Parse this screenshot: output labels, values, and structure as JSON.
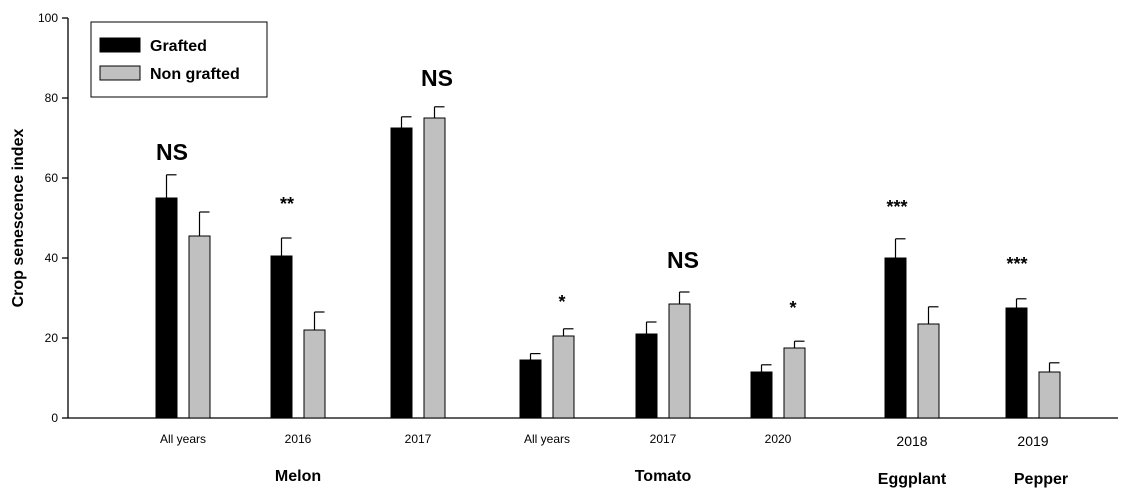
{
  "chart_data": {
    "type": "bar",
    "title": "",
    "xlabel": "",
    "ylabel": "Crop senescence index",
    "ylim": [
      0,
      100
    ],
    "yticks": [
      0,
      20,
      40,
      60,
      80,
      100
    ],
    "grid": false,
    "legend_position": "top-left",
    "groups": [
      "Melon",
      "Tomato",
      "Eggplant",
      "Pepper"
    ],
    "categories": [
      {
        "label": "All years",
        "group": "Melon"
      },
      {
        "label": "2016",
        "group": "Melon"
      },
      {
        "label": "2017",
        "group": "Melon"
      },
      {
        "label": "All years",
        "group": "Tomato"
      },
      {
        "label": "2017",
        "group": "Tomato"
      },
      {
        "label": "2020",
        "group": "Tomato"
      },
      {
        "label": "2018",
        "group": "Eggplant"
      },
      {
        "label": "2019",
        "group": "Pepper"
      }
    ],
    "series": [
      {
        "name": "Grafted",
        "color": "#000000",
        "values": [
          55,
          40.5,
          72.5,
          14.5,
          21,
          11.5,
          40,
          27.5
        ],
        "errors": [
          5.8,
          4.5,
          2.8,
          1.6,
          3,
          1.8,
          4.8,
          2.3
        ]
      },
      {
        "name": "Non grafted",
        "color": "#c0c0c0",
        "values": [
          45.5,
          22,
          75,
          20.5,
          28.5,
          17.5,
          23.5,
          11.5
        ],
        "errors": [
          6,
          4.5,
          2.8,
          1.8,
          3,
          1.7,
          4.3,
          2.3
        ]
      }
    ],
    "significance": [
      "NS",
      "**",
      "NS",
      "*",
      "NS",
      "*",
      "***",
      "***"
    ]
  }
}
